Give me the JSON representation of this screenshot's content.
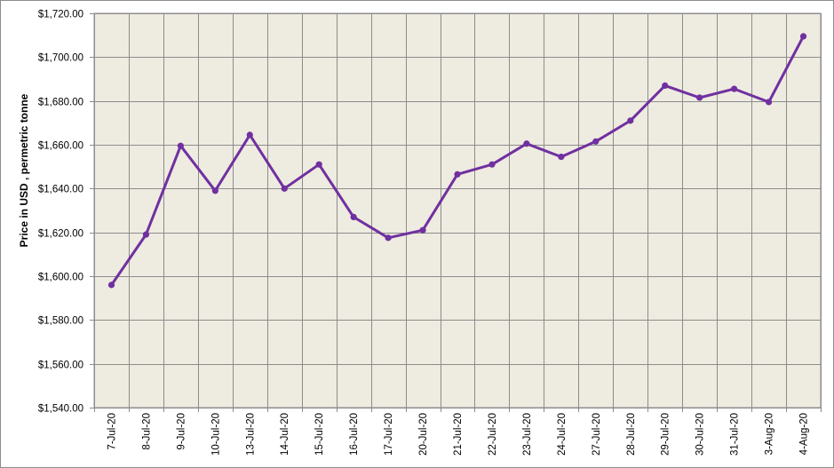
{
  "chart_data": {
    "type": "line",
    "title": "",
    "xlabel": "",
    "ylabel": "Price in USD , permetric tonne",
    "categories": [
      "7-Jul-20",
      "8-Jul-20",
      "9-Jul-20",
      "10-Jul-20",
      "13-Jul-20",
      "14-Jul-20",
      "15-Jul-20",
      "16-Jul-20",
      "17-Jul-20",
      "20-Jul-20",
      "21-Jul-20",
      "22-Jul-20",
      "23-Jul-20",
      "24-Jul-20",
      "27-Jul-20",
      "28-Jul-20",
      "29-Jul-20",
      "30-Jul-20",
      "31-Jul-20",
      "3-Aug-20",
      "4-Aug-20"
    ],
    "series": [
      {
        "values": [
          1596,
          1619,
          1659.5,
          1639,
          1664.5,
          1640,
          1651,
          1627,
          1617.5,
          1621,
          1646.5,
          1651,
          1660.5,
          1654.5,
          1661.5,
          1671,
          1687,
          1681.5,
          1685.5,
          1679.5,
          1709.5
        ]
      }
    ],
    "ylim": [
      1540,
      1720
    ],
    "ytick_step": 20,
    "ytick_labels": [
      "$1,540.00",
      "$1,560.00",
      "$1,580.00",
      "$1,600.00",
      "$1,620.00",
      "$1,640.00",
      "$1,660.00",
      "$1,680.00",
      "$1,700.00",
      "$1,720.00"
    ],
    "grid": true,
    "legend": "none",
    "colors": {
      "line": "#7030A0",
      "plot_background": "#EEEBE0",
      "grid": "#8C8C8C"
    }
  }
}
